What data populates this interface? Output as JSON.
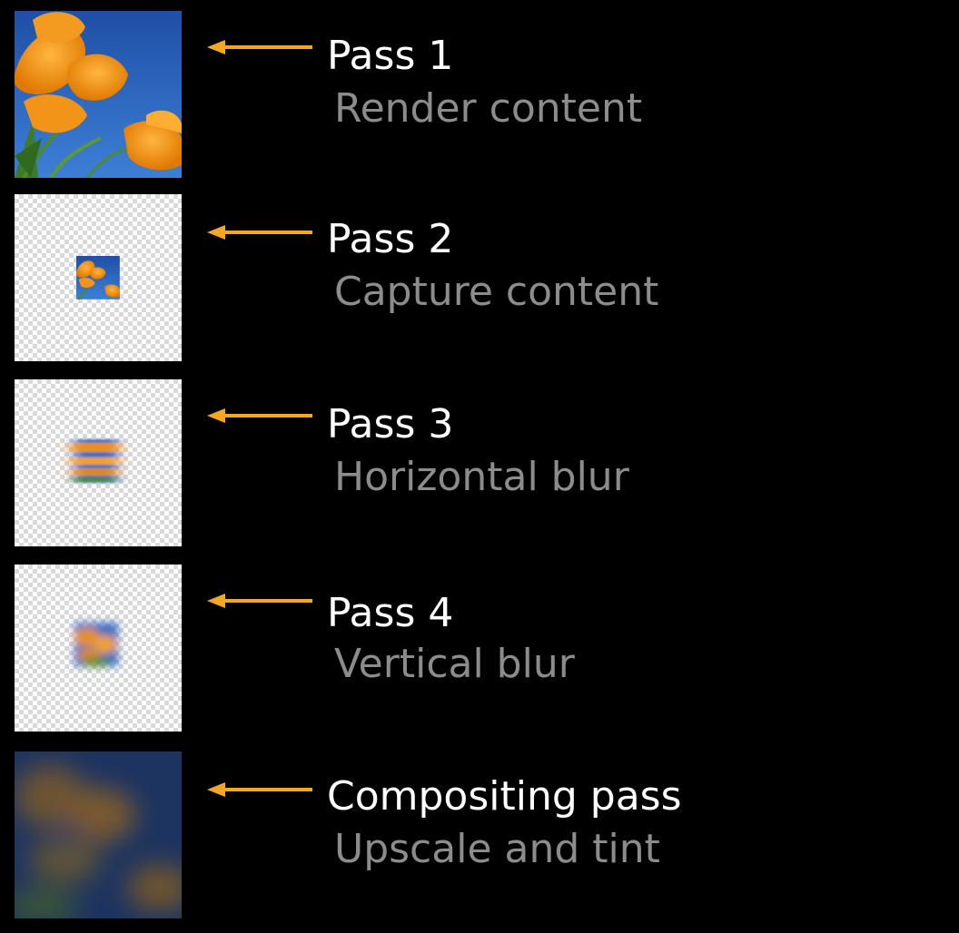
{
  "colors": {
    "background": "#000000",
    "arrow": "#f5a623",
    "title_text": "#ffffff",
    "subtitle_text": "#8c8c8c"
  },
  "passes": [
    {
      "title": "Pass 1",
      "subtitle": "Render content",
      "thumbnail": "poppy-photo",
      "arrow_icon": "arrow-left-icon"
    },
    {
      "title": "Pass 2",
      "subtitle": "Capture content",
      "thumbnail": "small-poppy-on-transparency",
      "arrow_icon": "arrow-left-icon"
    },
    {
      "title": "Pass 3",
      "subtitle": "Horizontal blur",
      "thumbnail": "horizontally-blurred-poppy-on-transparency",
      "arrow_icon": "arrow-left-icon"
    },
    {
      "title": "Pass 4",
      "subtitle": "Vertical blur",
      "thumbnail": "vertically-blurred-poppy-on-transparency",
      "arrow_icon": "arrow-left-icon"
    },
    {
      "title": "Compositing pass",
      "subtitle": "Upscale and tint",
      "thumbnail": "upscaled-tinted-blurred-poppy",
      "arrow_icon": "arrow-left-icon"
    }
  ]
}
